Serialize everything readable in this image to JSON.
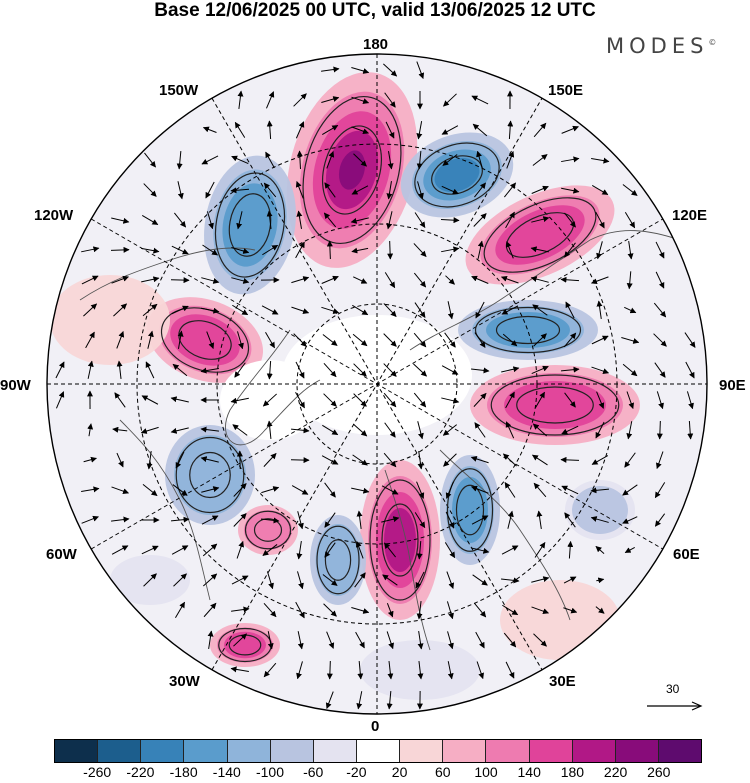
{
  "title": "Base 12/06/2025 00 UTC, valid 13/06/2025 12 UTC",
  "brand": "MODES",
  "brand_mark": "©",
  "longitude_labels": [
    "180",
    "150E",
    "120E",
    "90E",
    "60E",
    "30E",
    "0",
    "30W",
    "60W",
    "90W",
    "120W",
    "150W"
  ],
  "reference_vector": {
    "label": "30",
    "value": 30
  },
  "colorbar": {
    "tick_labels": [
      "-260",
      "-220",
      "-180",
      "-140",
      "-100",
      "-60",
      "-20",
      "20",
      "60",
      "100",
      "140",
      "180",
      "220",
      "260"
    ],
    "colors": [
      "#0d2f4c",
      "#1c5e8d",
      "#3782b8",
      "#5a9ccc",
      "#8fb4da",
      "#b8c4e0",
      "#e4e3f0",
      "#ffffff",
      "#f8d6d7",
      "#f6aec4",
      "#ee7bb0",
      "#e0439a",
      "#b11886",
      "#880c7a",
      "#5e0b6e"
    ]
  }
}
